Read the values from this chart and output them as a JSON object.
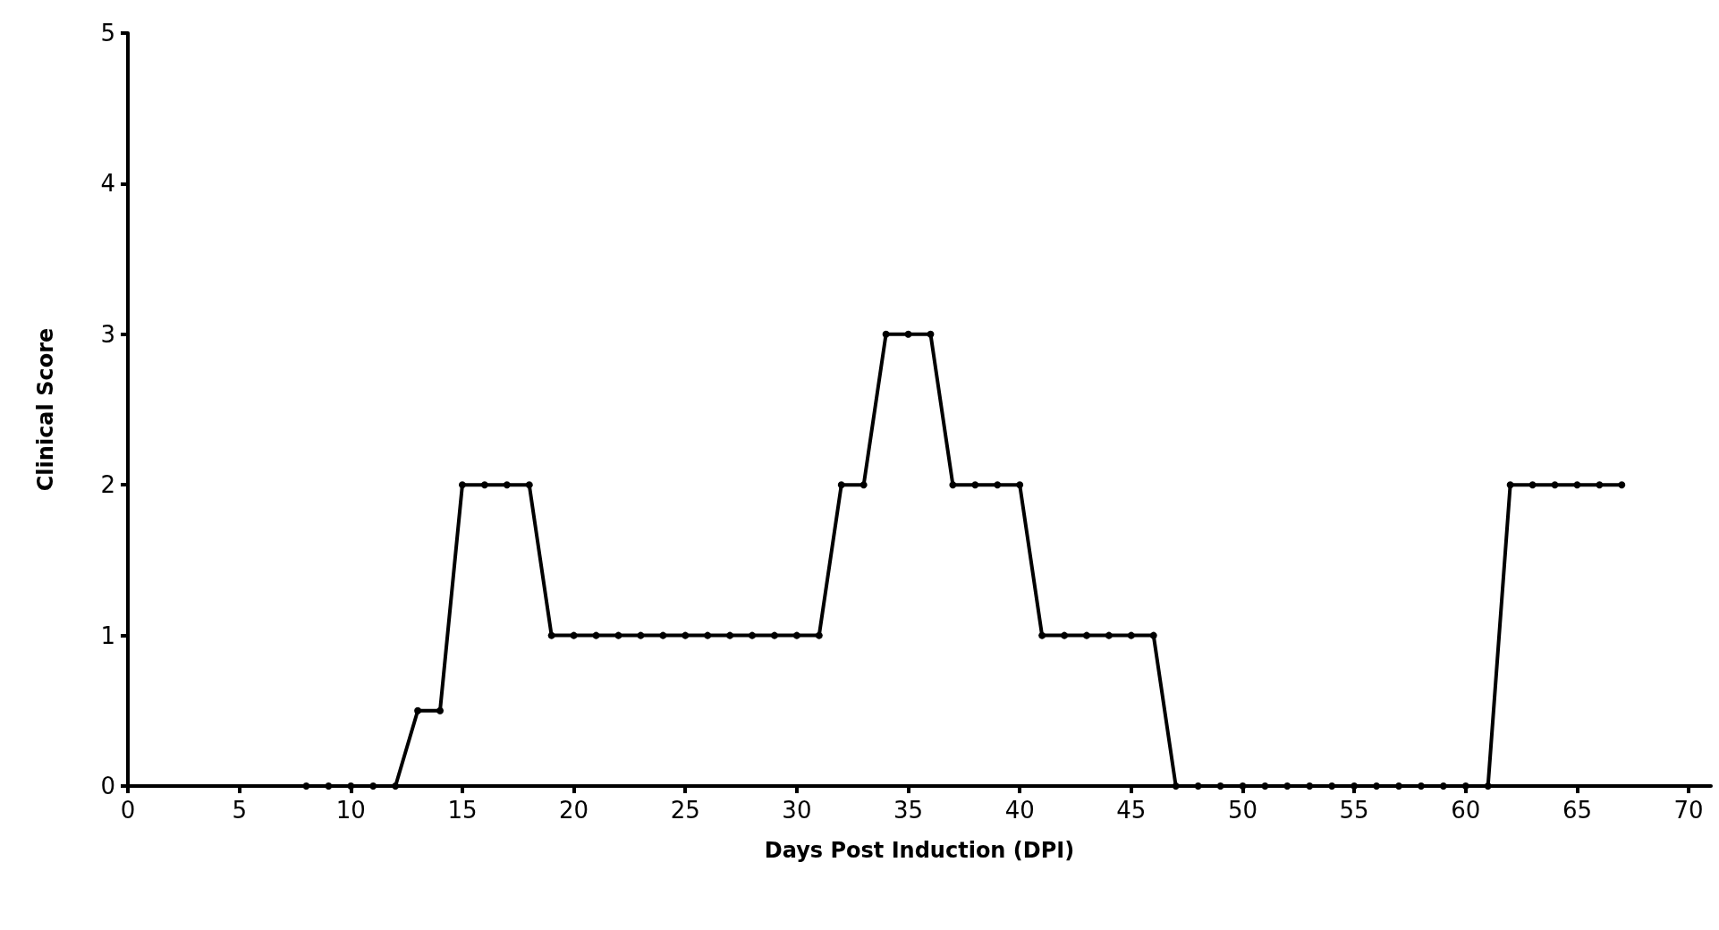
{
  "chart_data": {
    "type": "line",
    "xlabel": "Days Post Induction (DPI)",
    "ylabel": "Clinical Score",
    "x": [
      8,
      9,
      10,
      11,
      12,
      13,
      14,
      15,
      16,
      17,
      18,
      19,
      20,
      21,
      22,
      23,
      24,
      25,
      26,
      27,
      28,
      29,
      30,
      31,
      32,
      33,
      34,
      35,
      36,
      37,
      38,
      39,
      40,
      41,
      42,
      43,
      44,
      45,
      46,
      47,
      48,
      49,
      50,
      51,
      52,
      53,
      54,
      55,
      56,
      57,
      58,
      59,
      60,
      61,
      62,
      63,
      64,
      65,
      66,
      67
    ],
    "series": [
      {
        "color": "#000000",
        "values": [
          0,
          0,
          0,
          0,
          0,
          0.5,
          0.5,
          2,
          2,
          2,
          2,
          1,
          1,
          1,
          1,
          1,
          1,
          1,
          1,
          1,
          1,
          1,
          1,
          1,
          2,
          2,
          3,
          3,
          3,
          2,
          2,
          2,
          2,
          1,
          1,
          1,
          1,
          1,
          1,
          0,
          0,
          0,
          0,
          0,
          0,
          0,
          0,
          0,
          0,
          0,
          0,
          0,
          0,
          0,
          2,
          2,
          2,
          2,
          2,
          2
        ]
      }
    ],
    "xlim": [
      0,
      71
    ],
    "xticks": [
      0,
      5,
      10,
      15,
      20,
      25,
      30,
      35,
      40,
      45,
      50,
      55,
      60,
      65,
      70
    ],
    "ylim": [
      0,
      5
    ],
    "yticks": [
      0,
      1,
      2,
      3,
      4,
      5
    ],
    "marker": "circle",
    "line_style": "solid"
  }
}
